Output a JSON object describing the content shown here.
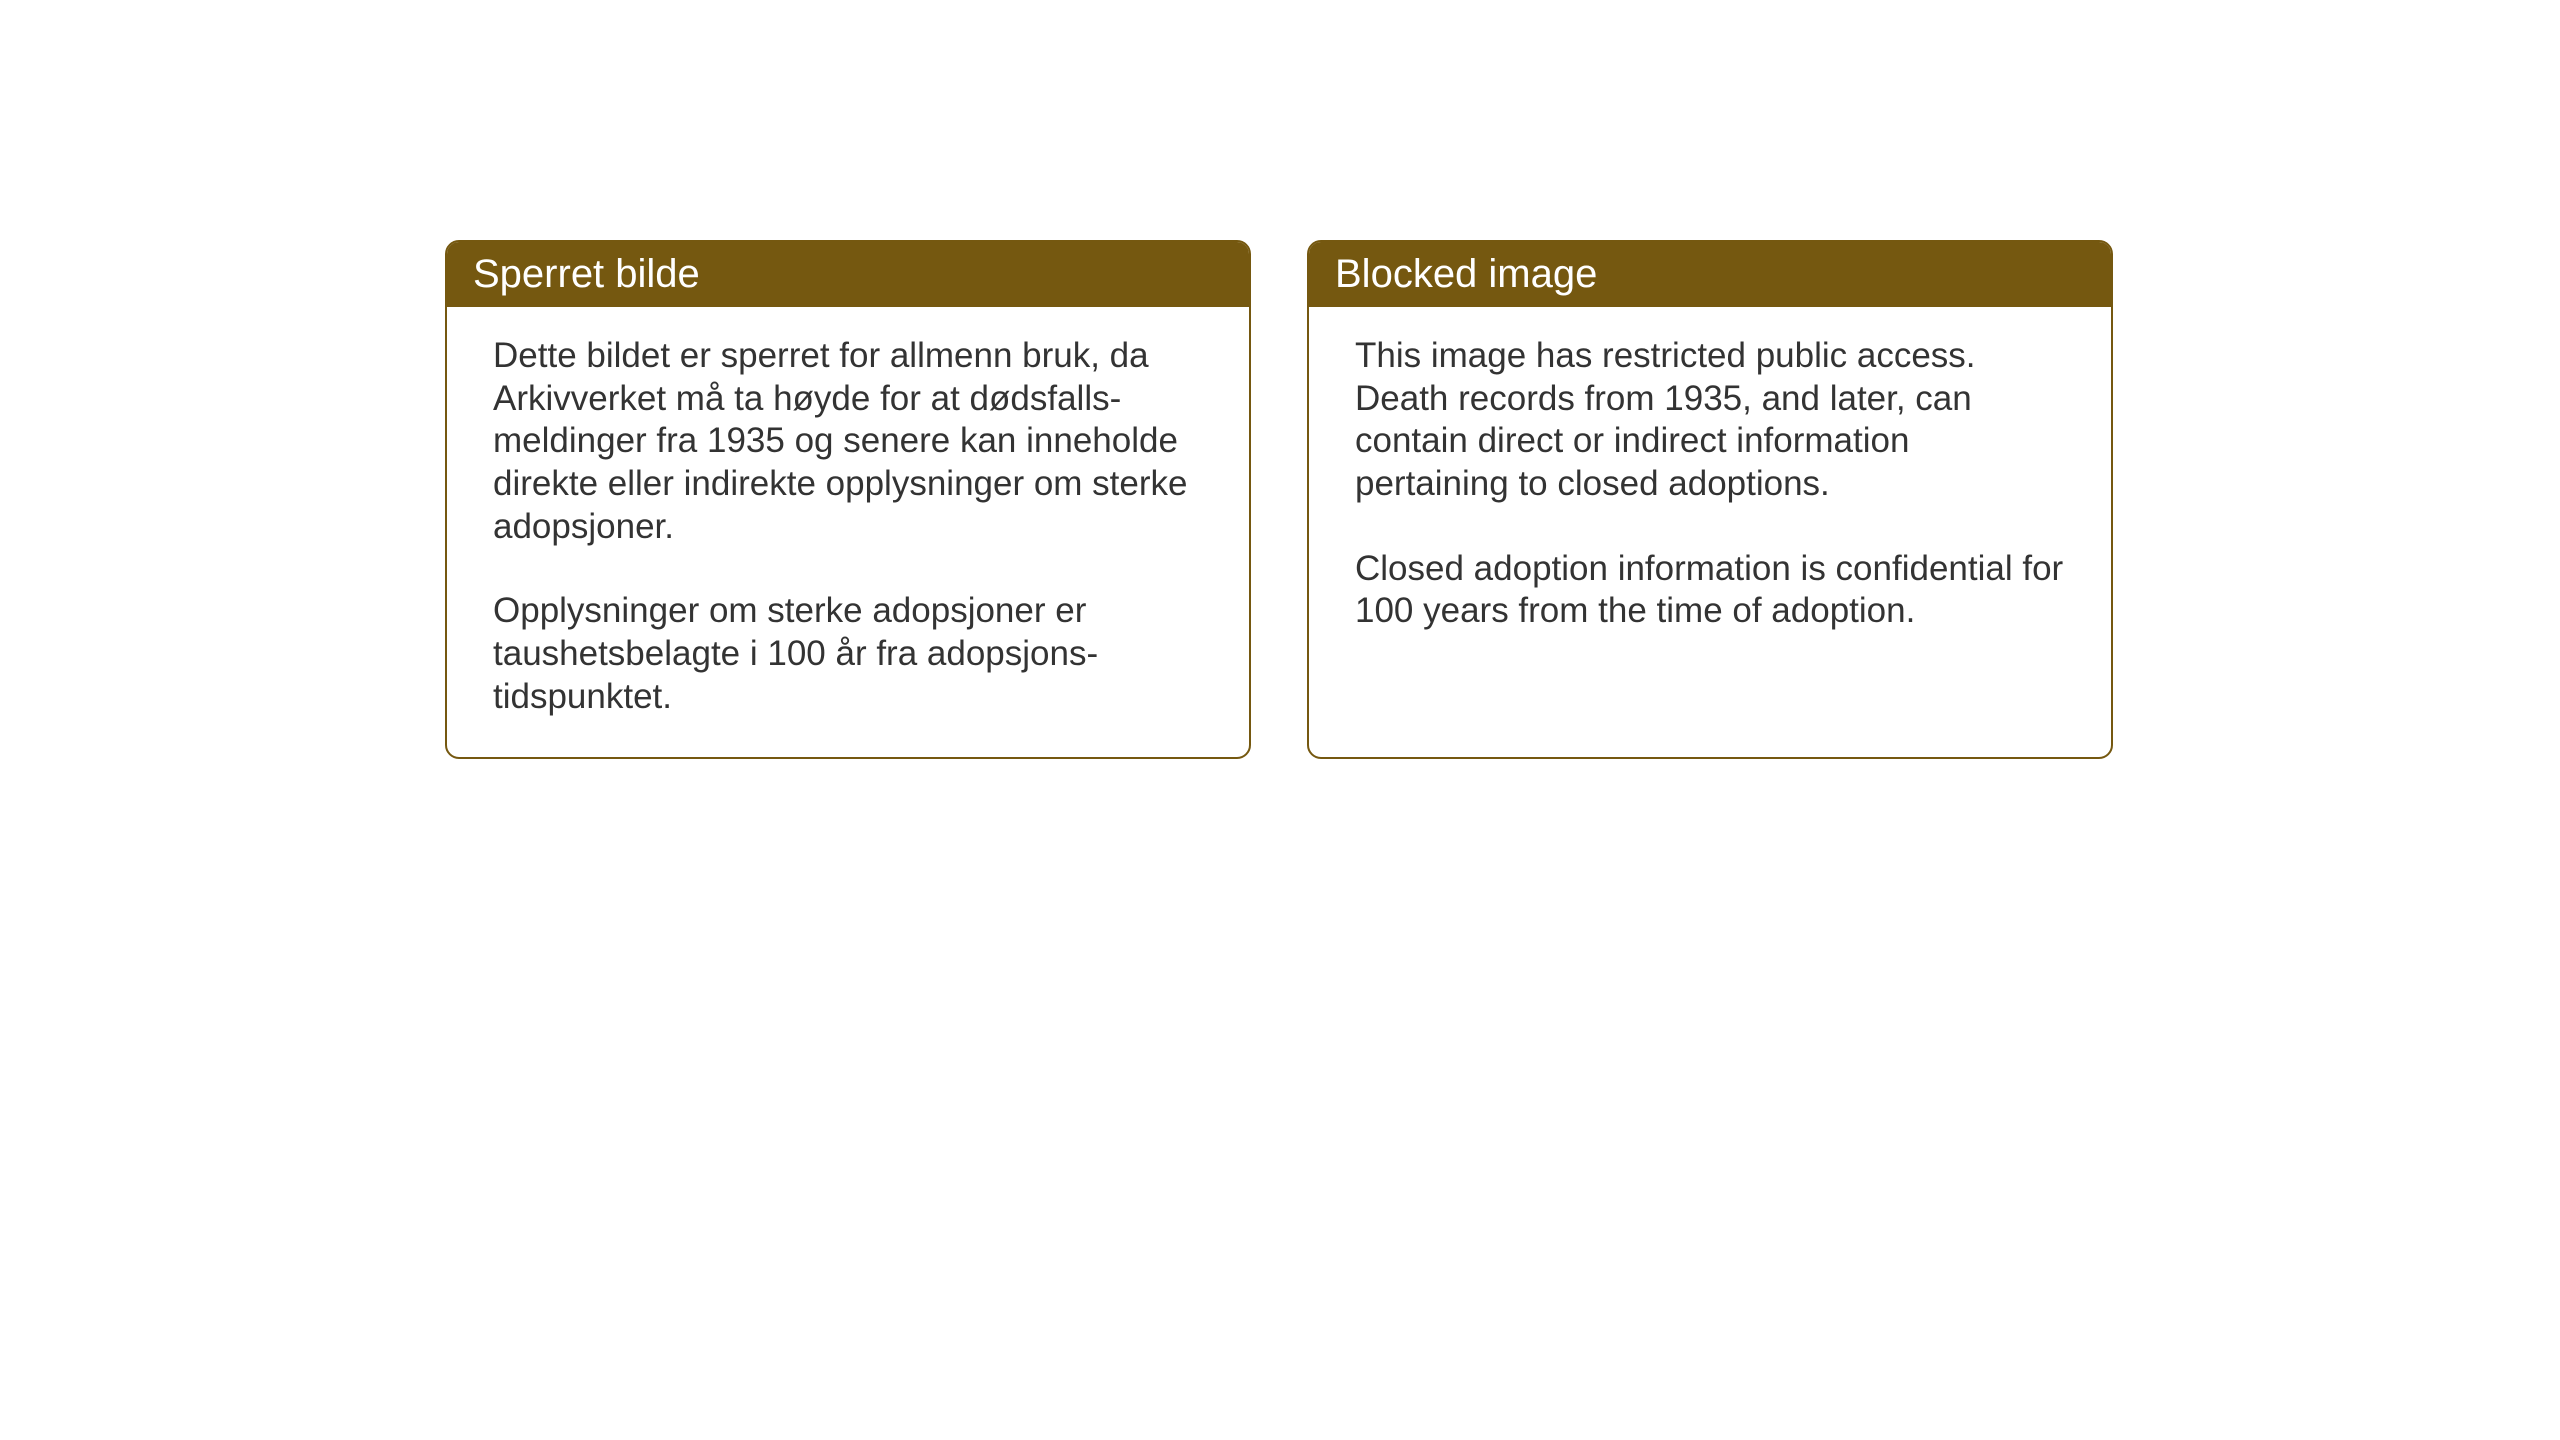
{
  "layout": {
    "background_color": "#ffffff",
    "card_border_color": "#755810",
    "card_border_radius": 14,
    "header_background": "#755810",
    "header_text_color": "#ffffff",
    "body_text_color": "#333333",
    "header_fontsize": 40,
    "body_fontsize": 35
  },
  "cards": {
    "norwegian": {
      "title": "Sperret bilde",
      "paragraph1": "Dette bildet er sperret for allmenn bruk, da Arkivverket må ta høyde for at dødsfalls-meldinger fra 1935 og senere kan inneholde direkte eller indirekte opplysninger om sterke adopsjoner.",
      "paragraph2": "Opplysninger om sterke adopsjoner er taushetsbelagte i 100 år fra adopsjons-tidspunktet."
    },
    "english": {
      "title": "Blocked image",
      "paragraph1": "This image has restricted public access. Death records from 1935, and later, can contain direct or indirect information pertaining to closed adoptions.",
      "paragraph2": "Closed adoption information is confidential for 100 years from the time of adoption."
    }
  }
}
